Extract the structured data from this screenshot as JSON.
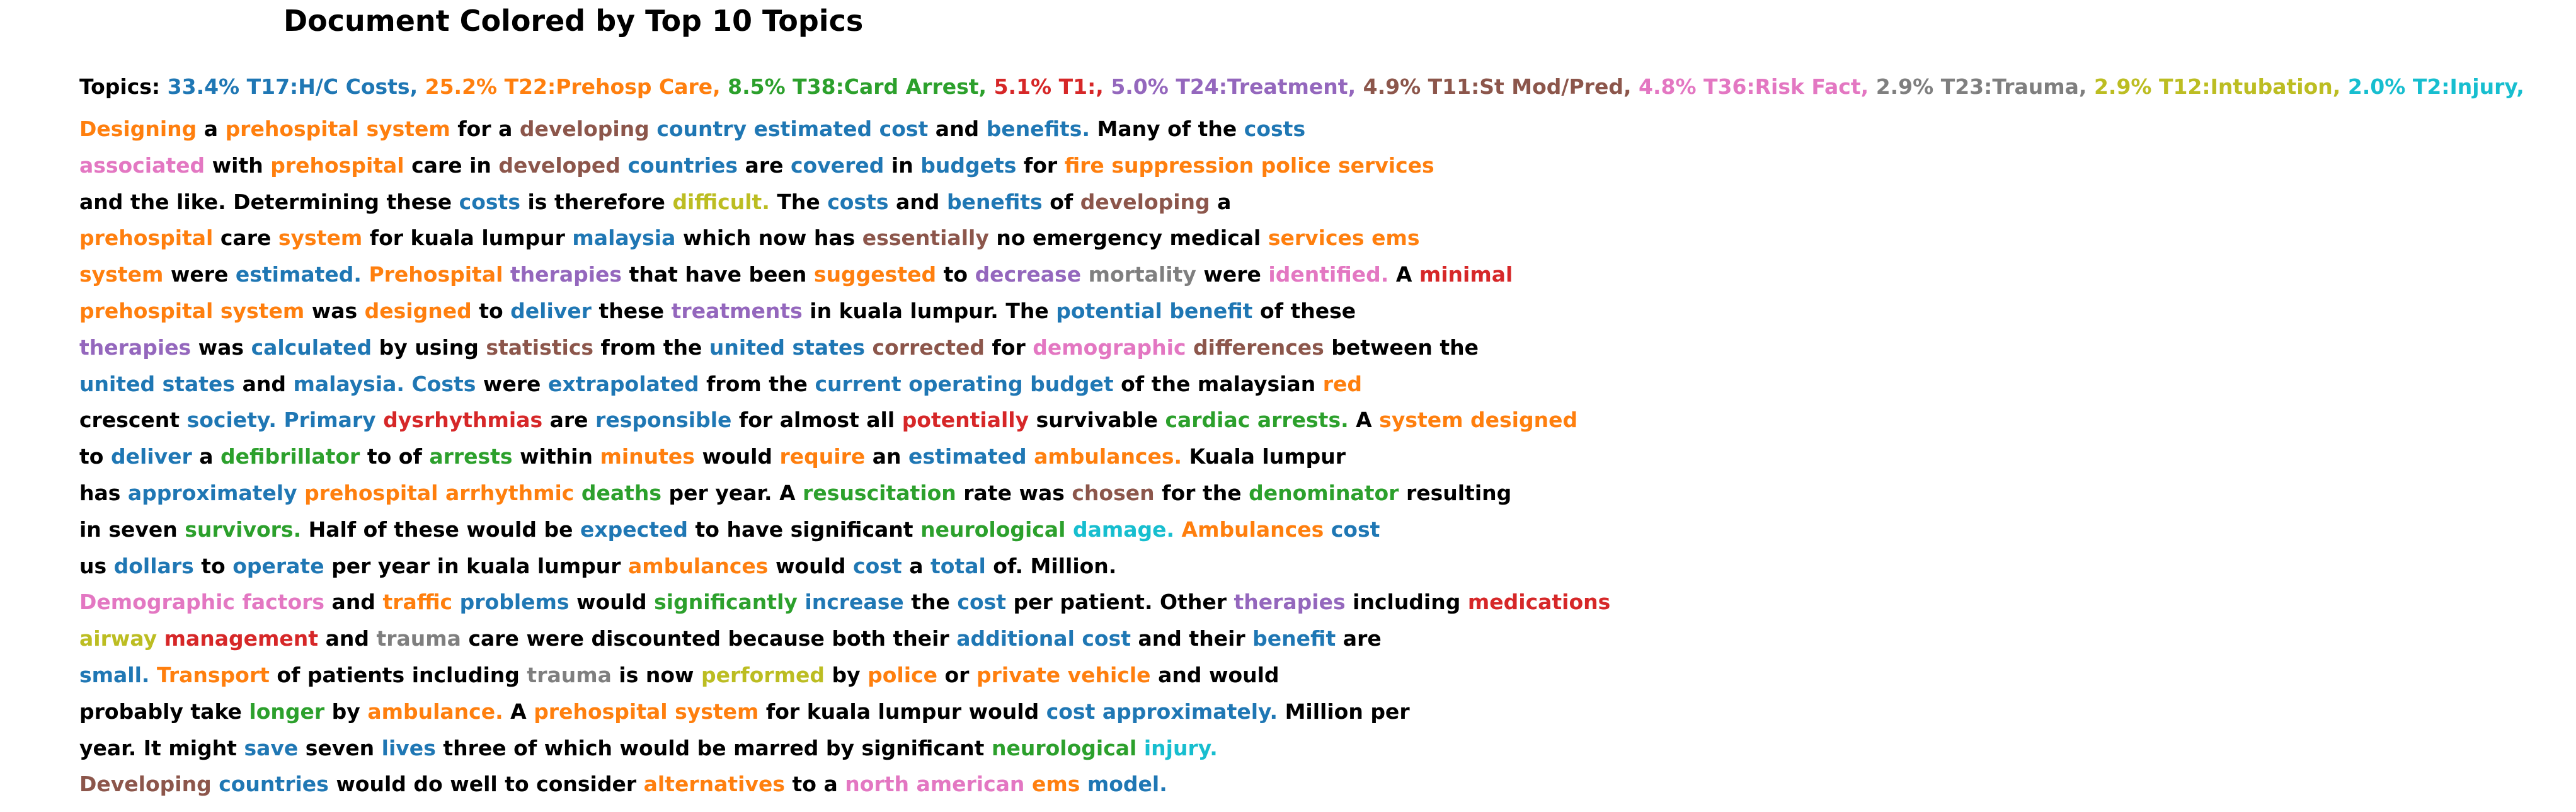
{
  "title": "Document Colored by Top 10 Topics",
  "colors": {
    "k": "#000000",
    "b": "#1f77b4",
    "o": "#ff7f0e",
    "g": "#2ca02c",
    "r": "#d62728",
    "p": "#9467bd",
    "n": "#8c564b",
    "m": "#e377c2",
    "y": "#7f7f7f",
    "l": "#bcbd22",
    "c": "#17becf"
  },
  "legend": {
    "label": "Topics:",
    "items": [
      {
        "text": "33.4% T17:H/C Costs,",
        "color": "b"
      },
      {
        "text": "25.2% T22:Prehosp Care,",
        "color": "o"
      },
      {
        "text": "8.5% T38:Card Arrest,",
        "color": "g"
      },
      {
        "text": "5.1% T1:,",
        "color": "r"
      },
      {
        "text": "5.0% T24:Treatment,",
        "color": "p"
      },
      {
        "text": "4.9% T11:St Mod/Pred,",
        "color": "n"
      },
      {
        "text": "4.8% T36:Risk Fact,",
        "color": "m"
      },
      {
        "text": "2.9% T23:Trauma,",
        "color": "y"
      },
      {
        "text": "2.9% T12:Intubation,",
        "color": "l"
      },
      {
        "text": "2.0% T2:Injury,",
        "color": "c"
      }
    ]
  },
  "lines": [
    [
      [
        "o",
        "Designing"
      ],
      [
        "k",
        "a"
      ],
      [
        "o",
        "prehospital"
      ],
      [
        "o",
        "system"
      ],
      [
        "k",
        "for"
      ],
      [
        "k",
        "a"
      ],
      [
        "n",
        "developing"
      ],
      [
        "b",
        "country"
      ],
      [
        "b",
        "estimated"
      ],
      [
        "b",
        "cost"
      ],
      [
        "k",
        "and"
      ],
      [
        "b",
        "benefits."
      ],
      [
        "k",
        "Many"
      ],
      [
        "k",
        "of"
      ],
      [
        "k",
        "the"
      ],
      [
        "b",
        "costs"
      ]
    ],
    [
      [
        "m",
        "associated"
      ],
      [
        "k",
        "with"
      ],
      [
        "o",
        "prehospital"
      ],
      [
        "k",
        "care"
      ],
      [
        "k",
        "in"
      ],
      [
        "n",
        "developed"
      ],
      [
        "b",
        "countries"
      ],
      [
        "k",
        "are"
      ],
      [
        "b",
        "covered"
      ],
      [
        "k",
        "in"
      ],
      [
        "b",
        "budgets"
      ],
      [
        "k",
        "for"
      ],
      [
        "o",
        "fire"
      ],
      [
        "o",
        "suppression"
      ],
      [
        "o",
        "police"
      ],
      [
        "o",
        "services"
      ]
    ],
    [
      [
        "k",
        "and"
      ],
      [
        "k",
        "the"
      ],
      [
        "k",
        "like."
      ],
      [
        "k",
        "Determining"
      ],
      [
        "k",
        "these"
      ],
      [
        "b",
        "costs"
      ],
      [
        "k",
        "is"
      ],
      [
        "k",
        "therefore"
      ],
      [
        "l",
        "difficult."
      ],
      [
        "k",
        "The"
      ],
      [
        "b",
        "costs"
      ],
      [
        "k",
        "and"
      ],
      [
        "b",
        "benefits"
      ],
      [
        "k",
        "of"
      ],
      [
        "n",
        "developing"
      ],
      [
        "k",
        "a"
      ]
    ],
    [
      [
        "o",
        "prehospital"
      ],
      [
        "k",
        "care"
      ],
      [
        "o",
        "system"
      ],
      [
        "k",
        "for"
      ],
      [
        "k",
        "kuala"
      ],
      [
        "k",
        "lumpur"
      ],
      [
        "b",
        "malaysia"
      ],
      [
        "k",
        "which"
      ],
      [
        "k",
        "now"
      ],
      [
        "k",
        "has"
      ],
      [
        "n",
        "essentially"
      ],
      [
        "k",
        "no"
      ],
      [
        "k",
        "emergency"
      ],
      [
        "k",
        "medical"
      ],
      [
        "o",
        "services"
      ],
      [
        "o",
        "ems"
      ]
    ],
    [
      [
        "o",
        "system"
      ],
      [
        "k",
        "were"
      ],
      [
        "b",
        "estimated."
      ],
      [
        "o",
        "Prehospital"
      ],
      [
        "p",
        "therapies"
      ],
      [
        "k",
        "that"
      ],
      [
        "k",
        "have"
      ],
      [
        "k",
        "been"
      ],
      [
        "o",
        "suggested"
      ],
      [
        "k",
        "to"
      ],
      [
        "p",
        "decrease"
      ],
      [
        "y",
        "mortality"
      ],
      [
        "k",
        "were"
      ],
      [
        "m",
        "identified."
      ],
      [
        "k",
        "A"
      ],
      [
        "r",
        "minimal"
      ]
    ],
    [
      [
        "o",
        "prehospital"
      ],
      [
        "o",
        "system"
      ],
      [
        "k",
        "was"
      ],
      [
        "o",
        "designed"
      ],
      [
        "k",
        "to"
      ],
      [
        "b",
        "deliver"
      ],
      [
        "k",
        "these"
      ],
      [
        "p",
        "treatments"
      ],
      [
        "k",
        "in"
      ],
      [
        "k",
        "kuala"
      ],
      [
        "k",
        "lumpur."
      ],
      [
        "k",
        "The"
      ],
      [
        "b",
        "potential"
      ],
      [
        "b",
        "benefit"
      ],
      [
        "k",
        "of"
      ],
      [
        "k",
        "these"
      ]
    ],
    [
      [
        "p",
        "therapies"
      ],
      [
        "k",
        "was"
      ],
      [
        "b",
        "calculated"
      ],
      [
        "k",
        "by"
      ],
      [
        "k",
        "using"
      ],
      [
        "n",
        "statistics"
      ],
      [
        "k",
        "from"
      ],
      [
        "k",
        "the"
      ],
      [
        "b",
        "united"
      ],
      [
        "b",
        "states"
      ],
      [
        "n",
        "corrected"
      ],
      [
        "k",
        "for"
      ],
      [
        "m",
        "demographic"
      ],
      [
        "n",
        "differences"
      ],
      [
        "k",
        "between"
      ],
      [
        "k",
        "the"
      ]
    ],
    [
      [
        "b",
        "united"
      ],
      [
        "b",
        "states"
      ],
      [
        "k",
        "and"
      ],
      [
        "b",
        "malaysia."
      ],
      [
        "b",
        "Costs"
      ],
      [
        "k",
        "were"
      ],
      [
        "b",
        "extrapolated"
      ],
      [
        "k",
        "from"
      ],
      [
        "k",
        "the"
      ],
      [
        "b",
        "current"
      ],
      [
        "b",
        "operating"
      ],
      [
        "b",
        "budget"
      ],
      [
        "k",
        "of"
      ],
      [
        "k",
        "the"
      ],
      [
        "k",
        "malaysian"
      ],
      [
        "o",
        "red"
      ]
    ],
    [
      [
        "k",
        "crescent"
      ],
      [
        "b",
        "society."
      ],
      [
        "b",
        "Primary"
      ],
      [
        "r",
        "dysrhythmias"
      ],
      [
        "k",
        "are"
      ],
      [
        "b",
        "responsible"
      ],
      [
        "k",
        "for"
      ],
      [
        "k",
        "almost"
      ],
      [
        "k",
        "all"
      ],
      [
        "r",
        "potentially"
      ],
      [
        "k",
        "survivable"
      ],
      [
        "g",
        "cardiac"
      ],
      [
        "g",
        "arrests."
      ],
      [
        "k",
        "A"
      ],
      [
        "o",
        "system"
      ],
      [
        "o",
        "designed"
      ]
    ],
    [
      [
        "k",
        "to"
      ],
      [
        "b",
        "deliver"
      ],
      [
        "k",
        "a"
      ],
      [
        "g",
        "defibrillator"
      ],
      [
        "k",
        "to"
      ],
      [
        "k",
        "of"
      ],
      [
        "g",
        "arrests"
      ],
      [
        "k",
        "within"
      ],
      [
        "o",
        "minutes"
      ],
      [
        "k",
        "would"
      ],
      [
        "o",
        "require"
      ],
      [
        "k",
        "an"
      ],
      [
        "b",
        "estimated"
      ],
      [
        "o",
        "ambulances."
      ],
      [
        "k",
        "Kuala"
      ],
      [
        "k",
        "lumpur"
      ]
    ],
    [
      [
        "k",
        "has"
      ],
      [
        "b",
        "approximately"
      ],
      [
        "o",
        "prehospital"
      ],
      [
        "o",
        "arrhythmic"
      ],
      [
        "g",
        "deaths"
      ],
      [
        "k",
        "per"
      ],
      [
        "k",
        "year."
      ],
      [
        "k",
        "A"
      ],
      [
        "g",
        "resuscitation"
      ],
      [
        "k",
        "rate"
      ],
      [
        "k",
        "was"
      ],
      [
        "n",
        "chosen"
      ],
      [
        "k",
        "for"
      ],
      [
        "k",
        "the"
      ],
      [
        "g",
        "denominator"
      ],
      [
        "k",
        "resulting"
      ]
    ],
    [
      [
        "k",
        "in"
      ],
      [
        "k",
        "seven"
      ],
      [
        "g",
        "survivors."
      ],
      [
        "k",
        "Half"
      ],
      [
        "k",
        "of"
      ],
      [
        "k",
        "these"
      ],
      [
        "k",
        "would"
      ],
      [
        "k",
        "be"
      ],
      [
        "b",
        "expected"
      ],
      [
        "k",
        "to"
      ],
      [
        "k",
        "have"
      ],
      [
        "k",
        "significant"
      ],
      [
        "g",
        "neurological"
      ],
      [
        "c",
        "damage."
      ],
      [
        "o",
        "Ambulances"
      ],
      [
        "b",
        "cost"
      ]
    ],
    [
      [
        "k",
        "us"
      ],
      [
        "b",
        "dollars"
      ],
      [
        "k",
        "to"
      ],
      [
        "b",
        "operate"
      ],
      [
        "k",
        "per"
      ],
      [
        "k",
        "year"
      ],
      [
        "k",
        "in"
      ],
      [
        "k",
        "kuala"
      ],
      [
        "k",
        "lumpur"
      ],
      [
        "o",
        "ambulances"
      ],
      [
        "k",
        "would"
      ],
      [
        "b",
        "cost"
      ],
      [
        "k",
        "a"
      ],
      [
        "b",
        "total"
      ],
      [
        "k",
        "of."
      ],
      [
        "k",
        "Million."
      ]
    ],
    [
      [
        "m",
        "Demographic"
      ],
      [
        "m",
        "factors"
      ],
      [
        "k",
        "and"
      ],
      [
        "o",
        "traffic"
      ],
      [
        "b",
        "problems"
      ],
      [
        "k",
        "would"
      ],
      [
        "g",
        "significantly"
      ],
      [
        "b",
        "increase"
      ],
      [
        "k",
        "the"
      ],
      [
        "b",
        "cost"
      ],
      [
        "k",
        "per"
      ],
      [
        "k",
        "patient."
      ],
      [
        "k",
        "Other"
      ],
      [
        "p",
        "therapies"
      ],
      [
        "k",
        "including"
      ],
      [
        "r",
        "medications"
      ]
    ],
    [
      [
        "l",
        "airway"
      ],
      [
        "r",
        "management"
      ],
      [
        "k",
        "and"
      ],
      [
        "y",
        "trauma"
      ],
      [
        "k",
        "care"
      ],
      [
        "k",
        "were"
      ],
      [
        "k",
        "discounted"
      ],
      [
        "k",
        "because"
      ],
      [
        "k",
        "both"
      ],
      [
        "k",
        "their"
      ],
      [
        "b",
        "additional"
      ],
      [
        "b",
        "cost"
      ],
      [
        "k",
        "and"
      ],
      [
        "k",
        "their"
      ],
      [
        "b",
        "benefit"
      ],
      [
        "k",
        "are"
      ]
    ],
    [
      [
        "b",
        "small."
      ],
      [
        "o",
        "Transport"
      ],
      [
        "k",
        "of"
      ],
      [
        "k",
        "patients"
      ],
      [
        "k",
        "including"
      ],
      [
        "y",
        "trauma"
      ],
      [
        "k",
        "is"
      ],
      [
        "k",
        "now"
      ],
      [
        "l",
        "performed"
      ],
      [
        "k",
        "by"
      ],
      [
        "o",
        "police"
      ],
      [
        "k",
        "or"
      ],
      [
        "o",
        "private"
      ],
      [
        "o",
        "vehicle"
      ],
      [
        "k",
        "and"
      ],
      [
        "k",
        "would"
      ]
    ],
    [
      [
        "k",
        "probably"
      ],
      [
        "k",
        "take"
      ],
      [
        "g",
        "longer"
      ],
      [
        "k",
        "by"
      ],
      [
        "o",
        "ambulance."
      ],
      [
        "k",
        "A"
      ],
      [
        "o",
        "prehospital"
      ],
      [
        "o",
        "system"
      ],
      [
        "k",
        "for"
      ],
      [
        "k",
        "kuala"
      ],
      [
        "k",
        "lumpur"
      ],
      [
        "k",
        "would"
      ],
      [
        "b",
        "cost"
      ],
      [
        "b",
        "approximately."
      ],
      [
        "k",
        "Million"
      ],
      [
        "k",
        "per"
      ]
    ],
    [
      [
        "k",
        "year."
      ],
      [
        "k",
        "It"
      ],
      [
        "k",
        "might"
      ],
      [
        "b",
        "save"
      ],
      [
        "k",
        "seven"
      ],
      [
        "b",
        "lives"
      ],
      [
        "k",
        "three"
      ],
      [
        "k",
        "of"
      ],
      [
        "k",
        "which"
      ],
      [
        "k",
        "would"
      ],
      [
        "k",
        "be"
      ],
      [
        "k",
        "marred"
      ],
      [
        "k",
        "by"
      ],
      [
        "k",
        "significant"
      ],
      [
        "g",
        "neurological"
      ],
      [
        "c",
        "injury."
      ]
    ],
    [
      [
        "n",
        "Developing"
      ],
      [
        "b",
        "countries"
      ],
      [
        "k",
        "would"
      ],
      [
        "k",
        "do"
      ],
      [
        "k",
        "well"
      ],
      [
        "k",
        "to"
      ],
      [
        "k",
        "consider"
      ],
      [
        "o",
        "alternatives"
      ],
      [
        "k",
        "to"
      ],
      [
        "k",
        "a"
      ],
      [
        "m",
        "north"
      ],
      [
        "m",
        "american"
      ],
      [
        "o",
        "ems"
      ],
      [
        "b",
        "model."
      ]
    ]
  ]
}
